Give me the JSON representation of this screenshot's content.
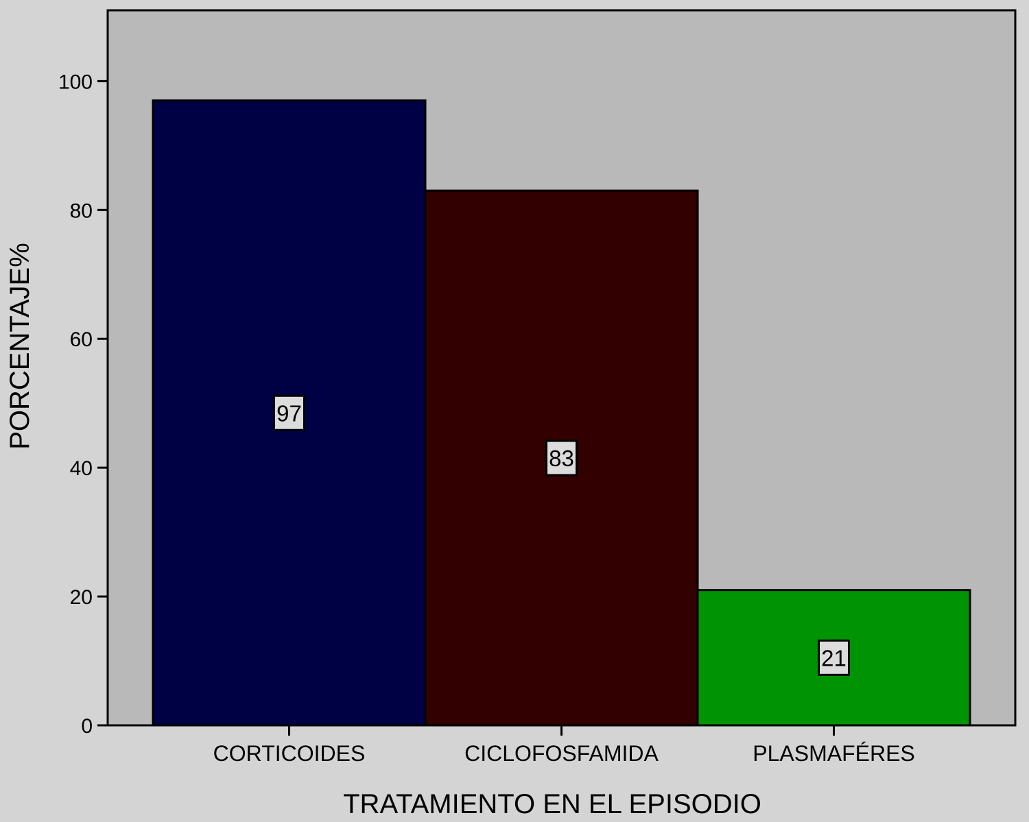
{
  "chart_data": {
    "type": "bar",
    "title": "",
    "xlabel": "TRATAMIENTO EN EL EPISODIO",
    "ylabel": "PORCENTAJE%",
    "categories": [
      "CORTICOIDES",
      "CICLOFOSFAMIDA",
      "PLASMAFÉRES"
    ],
    "values": [
      97,
      83,
      21
    ],
    "data_labels": [
      "97",
      "83",
      "21"
    ],
    "colors": [
      "#000044",
      "#330000",
      "#009405"
    ],
    "yticks": [
      0,
      20,
      40,
      60,
      80,
      100
    ],
    "ylim": [
      0,
      111
    ],
    "grid": false,
    "legend": "none",
    "plot_background": "#b9b9b9",
    "page_background": "#d4d4d4"
  }
}
